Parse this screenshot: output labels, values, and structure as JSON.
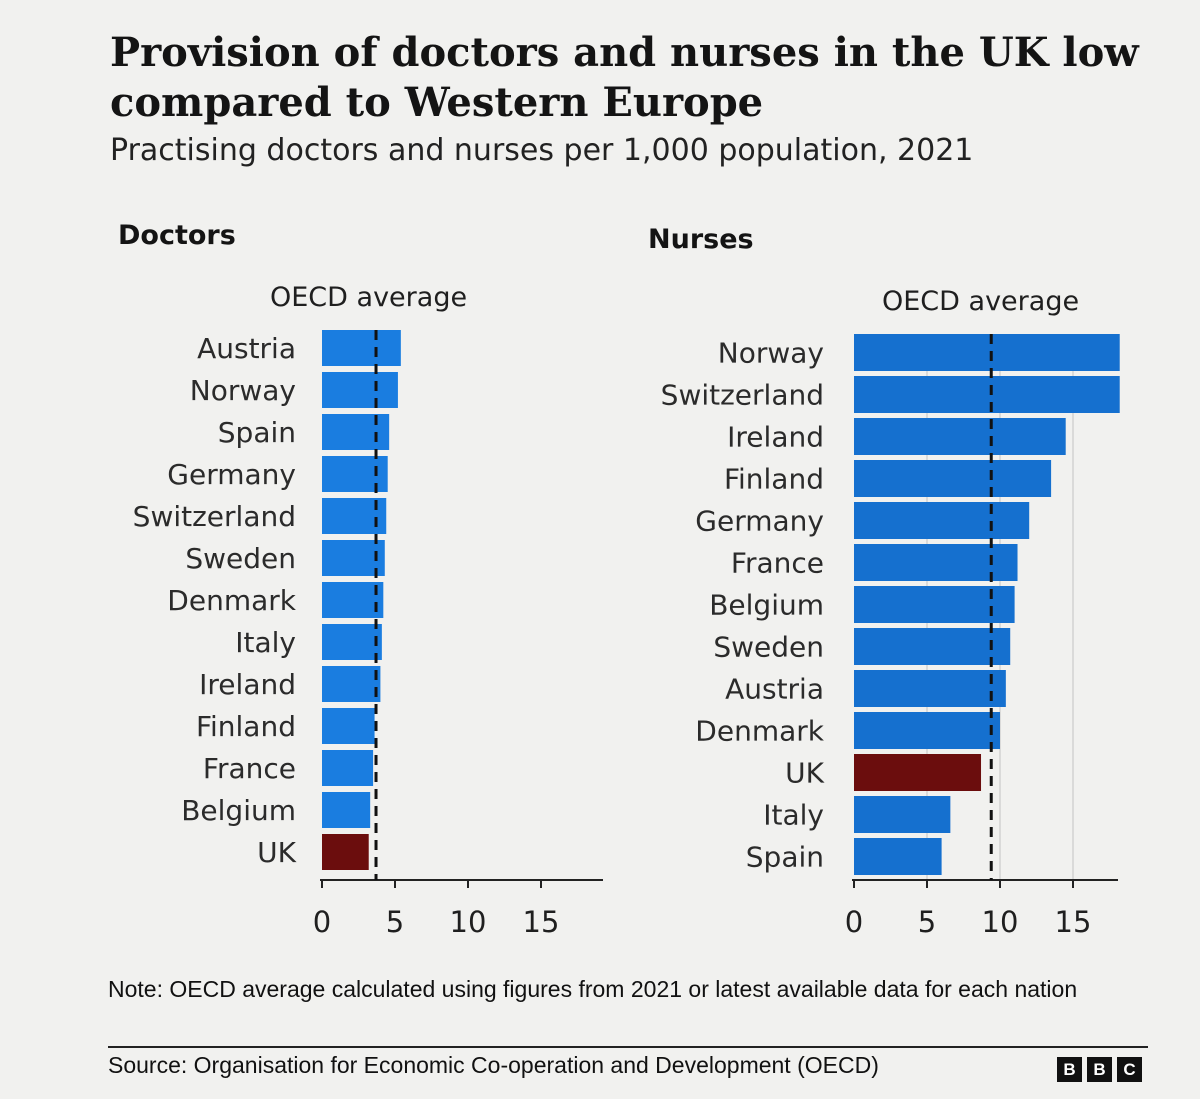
{
  "title": "Provision of doctors and nurses in the UK low compared to Western Europe",
  "subtitle": "Practising doctors and nurses per 1,000 population, 2021",
  "note": "Note: OECD average calculated using figures from 2021 or latest available data for each nation",
  "source": "Source: Organisation for Economic Co-operation and Development (OECD)",
  "logo_letters": [
    "B",
    "B",
    "C"
  ],
  "colors": {
    "bar": "#1a7de0",
    "uk_bar": "#6b0d0d",
    "nurse_bar": "#1570cf"
  },
  "chart_data": [
    {
      "type": "bar",
      "orientation": "horizontal",
      "title": "Doctors",
      "reference_line": {
        "label": "OECD average",
        "value": 3.7
      },
      "categories": [
        "Austria",
        "Norway",
        "Spain",
        "Germany",
        "Switzerland",
        "Sweden",
        "Denmark",
        "Italy",
        "Ireland",
        "Finland",
        "France",
        "Belgium",
        "UK"
      ],
      "values": [
        5.4,
        5.2,
        4.6,
        4.5,
        4.4,
        4.3,
        4.2,
        4.1,
        4.0,
        3.6,
        3.5,
        3.3,
        3.2
      ],
      "highlight": "UK",
      "xlim": [
        0,
        19
      ],
      "xticks": [
        0,
        5,
        10,
        15
      ],
      "grid": false
    },
    {
      "type": "bar",
      "orientation": "horizontal",
      "title": "Nurses",
      "reference_line": {
        "label": "OECD average",
        "value": 9.4
      },
      "categories": [
        "Norway",
        "Switzerland",
        "Ireland",
        "Finland",
        "Germany",
        "France",
        "Belgium",
        "Sweden",
        "Austria",
        "Denmark",
        "UK",
        "Italy",
        "Spain"
      ],
      "values": [
        18.2,
        18.2,
        14.5,
        13.5,
        12.0,
        11.2,
        11.0,
        10.7,
        10.4,
        10.0,
        8.7,
        6.6,
        6.0
      ],
      "highlight": "UK",
      "xlim": [
        0,
        19
      ],
      "xticks": [
        0,
        5,
        10,
        15
      ],
      "grid": true
    }
  ]
}
